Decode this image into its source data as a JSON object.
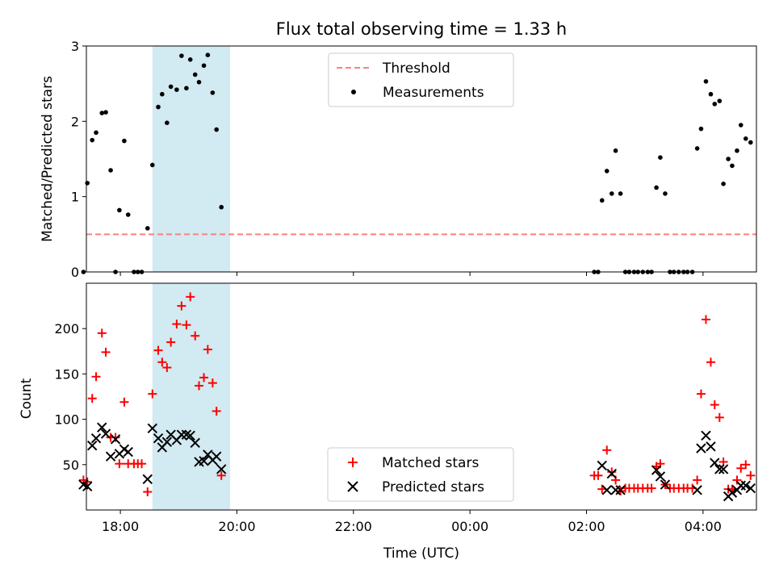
{
  "chart_data": [
    {
      "type": "scatter",
      "title": "Flux total observing time = 1.33 h",
      "xlabel": "",
      "ylabel": "Matched/Predicted stars",
      "ylim": [
        0,
        3
      ],
      "xlim": [
        "17:25",
        "04:55"
      ],
      "yticks": [
        "0",
        "1",
        "2",
        "3"
      ],
      "highlight_span": {
        "x_start": "18:33",
        "x_end": "19:53",
        "color": "#add8e6"
      },
      "threshold": {
        "name": "Threshold",
        "y": 0.5,
        "x_start": "17:25",
        "x_end": "04:55",
        "color": "#ff7f7f",
        "style": "dashed"
      },
      "legend": {
        "position": "top-center",
        "entries": [
          "Threshold",
          "Measurements"
        ]
      },
      "series": [
        {
          "name": "Measurements",
          "color": "#000000",
          "marker": "dot",
          "points": [
            [
              "17:22",
              0.0
            ],
            [
              "17:26",
              1.18
            ],
            [
              "17:31",
              1.75
            ],
            [
              "17:35",
              1.85
            ],
            [
              "17:41",
              2.11
            ],
            [
              "17:45",
              2.12
            ],
            [
              "17:50",
              1.35
            ],
            [
              "17:55",
              0.0
            ],
            [
              "17:59",
              0.82
            ],
            [
              "18:04",
              1.74
            ],
            [
              "18:08",
              0.76
            ],
            [
              "18:14",
              0.0
            ],
            [
              "18:18",
              0.0
            ],
            [
              "18:22",
              0.0
            ],
            [
              "18:28",
              0.58
            ],
            [
              "18:33",
              1.42
            ],
            [
              "18:39",
              2.19
            ],
            [
              "18:43",
              2.36
            ],
            [
              "18:48",
              1.98
            ],
            [
              "18:52",
              2.46
            ],
            [
              "18:58",
              2.42
            ],
            [
              "19:03",
              2.87
            ],
            [
              "19:08",
              2.44
            ],
            [
              "19:12",
              2.82
            ],
            [
              "19:17",
              2.62
            ],
            [
              "19:21",
              2.52
            ],
            [
              "19:26",
              2.74
            ],
            [
              "19:30",
              2.88
            ],
            [
              "19:35",
              2.38
            ],
            [
              "19:39",
              1.89
            ],
            [
              "19:44",
              0.86
            ],
            [
              "02:08",
              0.0
            ],
            [
              "02:12",
              0.0
            ],
            [
              "02:16",
              0.95
            ],
            [
              "02:21",
              1.34
            ],
            [
              "02:26",
              1.04
            ],
            [
              "02:30",
              1.61
            ],
            [
              "02:35",
              1.04
            ],
            [
              "02:40",
              0.0
            ],
            [
              "02:44",
              0.0
            ],
            [
              "02:49",
              0.0
            ],
            [
              "02:53",
              0.0
            ],
            [
              "02:58",
              0.0
            ],
            [
              "03:03",
              0.0
            ],
            [
              "03:07",
              0.0
            ],
            [
              "03:12",
              1.12
            ],
            [
              "03:16",
              1.52
            ],
            [
              "03:21",
              1.04
            ],
            [
              "03:26",
              0.0
            ],
            [
              "03:30",
              0.0
            ],
            [
              "03:35",
              0.0
            ],
            [
              "03:40",
              0.0
            ],
            [
              "03:44",
              0.0
            ],
            [
              "03:49",
              0.0
            ],
            [
              "03:54",
              1.64
            ],
            [
              "03:58",
              1.9
            ],
            [
              "04:03",
              2.53
            ],
            [
              "04:08",
              2.36
            ],
            [
              "04:12",
              2.23
            ],
            [
              "04:17",
              2.27
            ],
            [
              "04:21",
              1.17
            ],
            [
              "04:26",
              1.5
            ],
            [
              "04:30",
              1.41
            ],
            [
              "04:35",
              1.61
            ],
            [
              "04:39",
              1.95
            ],
            [
              "04:44",
              1.77
            ],
            [
              "04:49",
              1.72
            ]
          ]
        }
      ]
    },
    {
      "type": "scatter",
      "title": "",
      "xlabel": "Time (UTC)",
      "ylabel": "Count",
      "ylim": [
        0,
        250
      ],
      "xlim": [
        "17:25",
        "04:55"
      ],
      "xticks": [
        "18:00",
        "20:00",
        "22:00",
        "00:00",
        "02:00",
        "04:00"
      ],
      "yticks": [
        "50",
        "100",
        "150",
        "200"
      ],
      "highlight_span": {
        "x_start": "18:33",
        "x_end": "19:53",
        "color": "#add8e6"
      },
      "legend": {
        "position": "bottom-center",
        "entries": [
          "Matched stars",
          "Predicted stars"
        ]
      },
      "series": [
        {
          "name": "Matched stars",
          "color": "#ff0000",
          "marker": "plus",
          "points": [
            [
              "17:22",
              33
            ],
            [
              "17:26",
              31
            ],
            [
              "17:31",
              123
            ],
            [
              "17:35",
              147
            ],
            [
              "17:41",
              195
            ],
            [
              "17:45",
              174
            ],
            [
              "17:50",
              80
            ],
            [
              "17:55",
              80
            ],
            [
              "17:59",
              51
            ],
            [
              "18:04",
              119
            ],
            [
              "18:08",
              51
            ],
            [
              "18:14",
              51
            ],
            [
              "18:18",
              51
            ],
            [
              "18:22",
              51
            ],
            [
              "18:28",
              20
            ],
            [
              "18:33",
              128
            ],
            [
              "18:39",
              176
            ],
            [
              "18:43",
              163
            ],
            [
              "18:48",
              157
            ],
            [
              "18:52",
              185
            ],
            [
              "18:58",
              205
            ],
            [
              "19:03",
              225
            ],
            [
              "19:08",
              204
            ],
            [
              "19:12",
              235
            ],
            [
              "19:17",
              192
            ],
            [
              "19:21",
              137
            ],
            [
              "19:26",
              146
            ],
            [
              "19:30",
              177
            ],
            [
              "19:35",
              140
            ],
            [
              "19:39",
              109
            ],
            [
              "19:44",
              38
            ],
            [
              "02:08",
              38
            ],
            [
              "02:12",
              38
            ],
            [
              "02:16",
              23
            ],
            [
              "02:21",
              66
            ],
            [
              "02:26",
              42
            ],
            [
              "02:30",
              33
            ],
            [
              "02:35",
              21
            ],
            [
              "02:40",
              24
            ],
            [
              "02:44",
              24
            ],
            [
              "02:49",
              24
            ],
            [
              "02:53",
              24
            ],
            [
              "02:58",
              24
            ],
            [
              "03:03",
              24
            ],
            [
              "03:07",
              24
            ],
            [
              "03:12",
              48
            ],
            [
              "03:16",
              51
            ],
            [
              "03:21",
              28
            ],
            [
              "03:26",
              24
            ],
            [
              "03:30",
              24
            ],
            [
              "03:35",
              24
            ],
            [
              "03:40",
              24
            ],
            [
              "03:44",
              24
            ],
            [
              "03:49",
              24
            ],
            [
              "03:54",
              33
            ],
            [
              "03:58",
              128
            ],
            [
              "04:03",
              210
            ],
            [
              "04:08",
              163
            ],
            [
              "04:12",
              116
            ],
            [
              "04:17",
              102
            ],
            [
              "04:21",
              53
            ],
            [
              "04:26",
              23
            ],
            [
              "04:30",
              23
            ],
            [
              "04:35",
              33
            ],
            [
              "04:39",
              46
            ],
            [
              "04:44",
              50
            ],
            [
              "04:49",
              38
            ]
          ]
        },
        {
          "name": "Predicted stars",
          "color": "#000000",
          "marker": "x",
          "points": [
            [
              "17:22",
              28
            ],
            [
              "17:26",
              26
            ],
            [
              "17:31",
              71
            ],
            [
              "17:35",
              79
            ],
            [
              "17:41",
              91
            ],
            [
              "17:45",
              84
            ],
            [
              "17:50",
              59
            ],
            [
              "17:55",
              78
            ],
            [
              "17:59",
              62
            ],
            [
              "18:04",
              67
            ],
            [
              "18:08",
              64
            ],
            [
              "18:28",
              34
            ],
            [
              "18:33",
              90
            ],
            [
              "18:39",
              79
            ],
            [
              "18:43",
              69
            ],
            [
              "18:48",
              75
            ],
            [
              "18:52",
              83
            ],
            [
              "18:58",
              77
            ],
            [
              "19:03",
              83
            ],
            [
              "19:08",
              83
            ],
            [
              "19:12",
              82
            ],
            [
              "19:17",
              74
            ],
            [
              "19:21",
              53
            ],
            [
              "19:26",
              54
            ],
            [
              "19:30",
              61
            ],
            [
              "19:35",
              55
            ],
            [
              "19:39",
              59
            ],
            [
              "19:44",
              45
            ],
            [
              "02:16",
              49
            ],
            [
              "02:21",
              22
            ],
            [
              "02:26",
              40
            ],
            [
              "02:30",
              22
            ],
            [
              "02:35",
              22
            ],
            [
              "03:12",
              44
            ],
            [
              "03:16",
              37
            ],
            [
              "03:21",
              28
            ],
            [
              "03:54",
              22
            ],
            [
              "03:58",
              68
            ],
            [
              "04:03",
              82
            ],
            [
              "04:08",
              70
            ],
            [
              "04:12",
              52
            ],
            [
              "04:17",
              45
            ],
            [
              "04:21",
              45
            ],
            [
              "04:26",
              15
            ],
            [
              "04:30",
              19
            ],
            [
              "04:35",
              22
            ],
            [
              "04:39",
              27
            ],
            [
              "04:44",
              27
            ],
            [
              "04:49",
              24
            ]
          ]
        }
      ]
    }
  ]
}
